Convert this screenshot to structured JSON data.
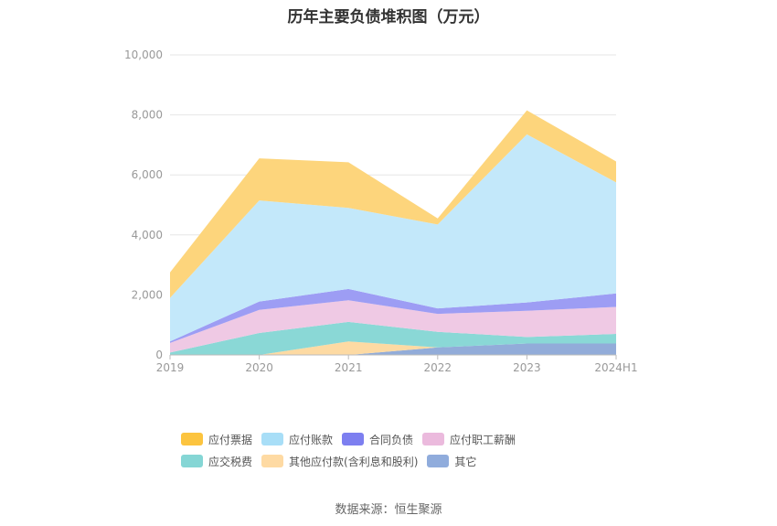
{
  "chart_data": {
    "type": "area",
    "stacked": true,
    "title": "历年主要负债堆积图（万元）",
    "x": [
      "2019",
      "2020",
      "2021",
      "2022",
      "2023",
      "2024H1"
    ],
    "ylim": [
      0,
      10000
    ],
    "yticks": [
      "0",
      "2,000",
      "4,000",
      "6,000",
      "8,000",
      "10,000"
    ],
    "ytick_values": [
      0,
      2000,
      4000,
      6000,
      8000,
      10000
    ],
    "grid": true,
    "legend_position": "bottom",
    "series": [
      {
        "name": "其它",
        "color": "#92acd9",
        "values": [
          0,
          0,
          0,
          250,
          380,
          380
        ]
      },
      {
        "name": "其他应付款(含利息和股利)",
        "color": "#fddaa3",
        "values": [
          0,
          0,
          450,
          0,
          0,
          0
        ]
      },
      {
        "name": "应交税费",
        "color": "#8ad8d6",
        "values": [
          80,
          730,
          650,
          520,
          220,
          320
        ]
      },
      {
        "name": "应付职工薪酬",
        "color": "#efc9e4",
        "values": [
          320,
          770,
          720,
          600,
          870,
          900
        ]
      },
      {
        "name": "合同负债",
        "color": "#9d9df4",
        "values": [
          50,
          280,
          380,
          180,
          280,
          450
        ]
      },
      {
        "name": "应付账款",
        "color": "#c3e8fa",
        "values": [
          1450,
          3370,
          2700,
          2800,
          5600,
          3700
        ]
      },
      {
        "name": "应付票据",
        "color": "#fdd57c",
        "values": [
          850,
          1400,
          1520,
          200,
          800,
          700
        ]
      }
    ],
    "legend_order": [
      "应付票据",
      "应付账款",
      "合同负债",
      "应付职工薪酬",
      "应交税费",
      "其他应付款(含利息和股利)",
      "其它"
    ],
    "legend_colors": {
      "应付票据": "#fcc43f",
      "应付账款": "#a8def7",
      "合同负债": "#7d7ff0",
      "应付职工薪酬": "#ebbadd",
      "应交税费": "#85d6d5",
      "其他应付款(含利息和股利)": "#fedaa3",
      "其它": "#90acdc"
    }
  },
  "source": "数据来源：恒生聚源"
}
